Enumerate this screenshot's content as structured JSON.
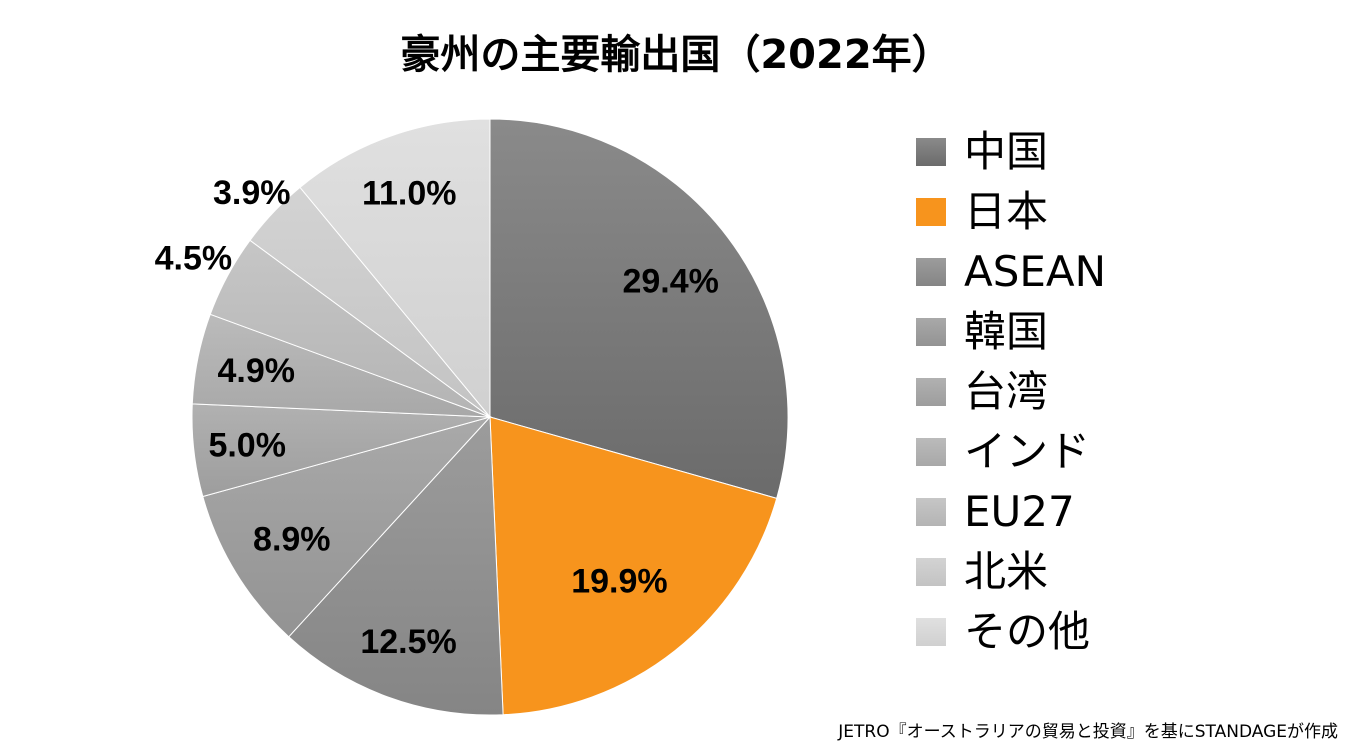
{
  "chart_data": {
    "type": "pie",
    "title": "豪州の主要輸出国（2022年）",
    "start": "top",
    "direction": "clockwise",
    "legend_position": "right",
    "slices": [
      {
        "name": "中国",
        "value": 29.4,
        "label": "29.4%",
        "color": "#6b6b6b",
        "color_light": "#8a8a8a"
      },
      {
        "name": "日本",
        "value": 19.9,
        "label": "19.9%",
        "color": "#f7941d",
        "color_light": "#f7941d"
      },
      {
        "name": "ASEAN",
        "value": 12.5,
        "label": "12.5%",
        "color": "#858585",
        "color_light": "#9c9c9c"
      },
      {
        "name": "韓国",
        "value": 8.9,
        "label": "8.9%",
        "color": "#939393",
        "color_light": "#a9a9a9"
      },
      {
        "name": "台湾",
        "value": 5.0,
        "label": "5.0%",
        "color": "#9d9d9d",
        "color_light": "#b1b1b1"
      },
      {
        "name": "インド",
        "value": 4.9,
        "label": "4.9%",
        "color": "#a8a8a8",
        "color_light": "#bbbbbb"
      },
      {
        "name": "EU27",
        "value": 4.5,
        "label": "4.5%",
        "color": "#b4b4b4",
        "color_light": "#c6c6c6"
      },
      {
        "name": "北米",
        "value": 3.9,
        "label": "3.9%",
        "color": "#c3c3c3",
        "color_light": "#d3d3d3"
      },
      {
        "name": "その他",
        "value": 11.0,
        "label": "11.0%",
        "color": "#d0d0d0",
        "color_light": "#e0e0e0"
      }
    ]
  },
  "source": "JETRO『オーストラリアの貿易と投資』を基にSTANDAGEが作成"
}
